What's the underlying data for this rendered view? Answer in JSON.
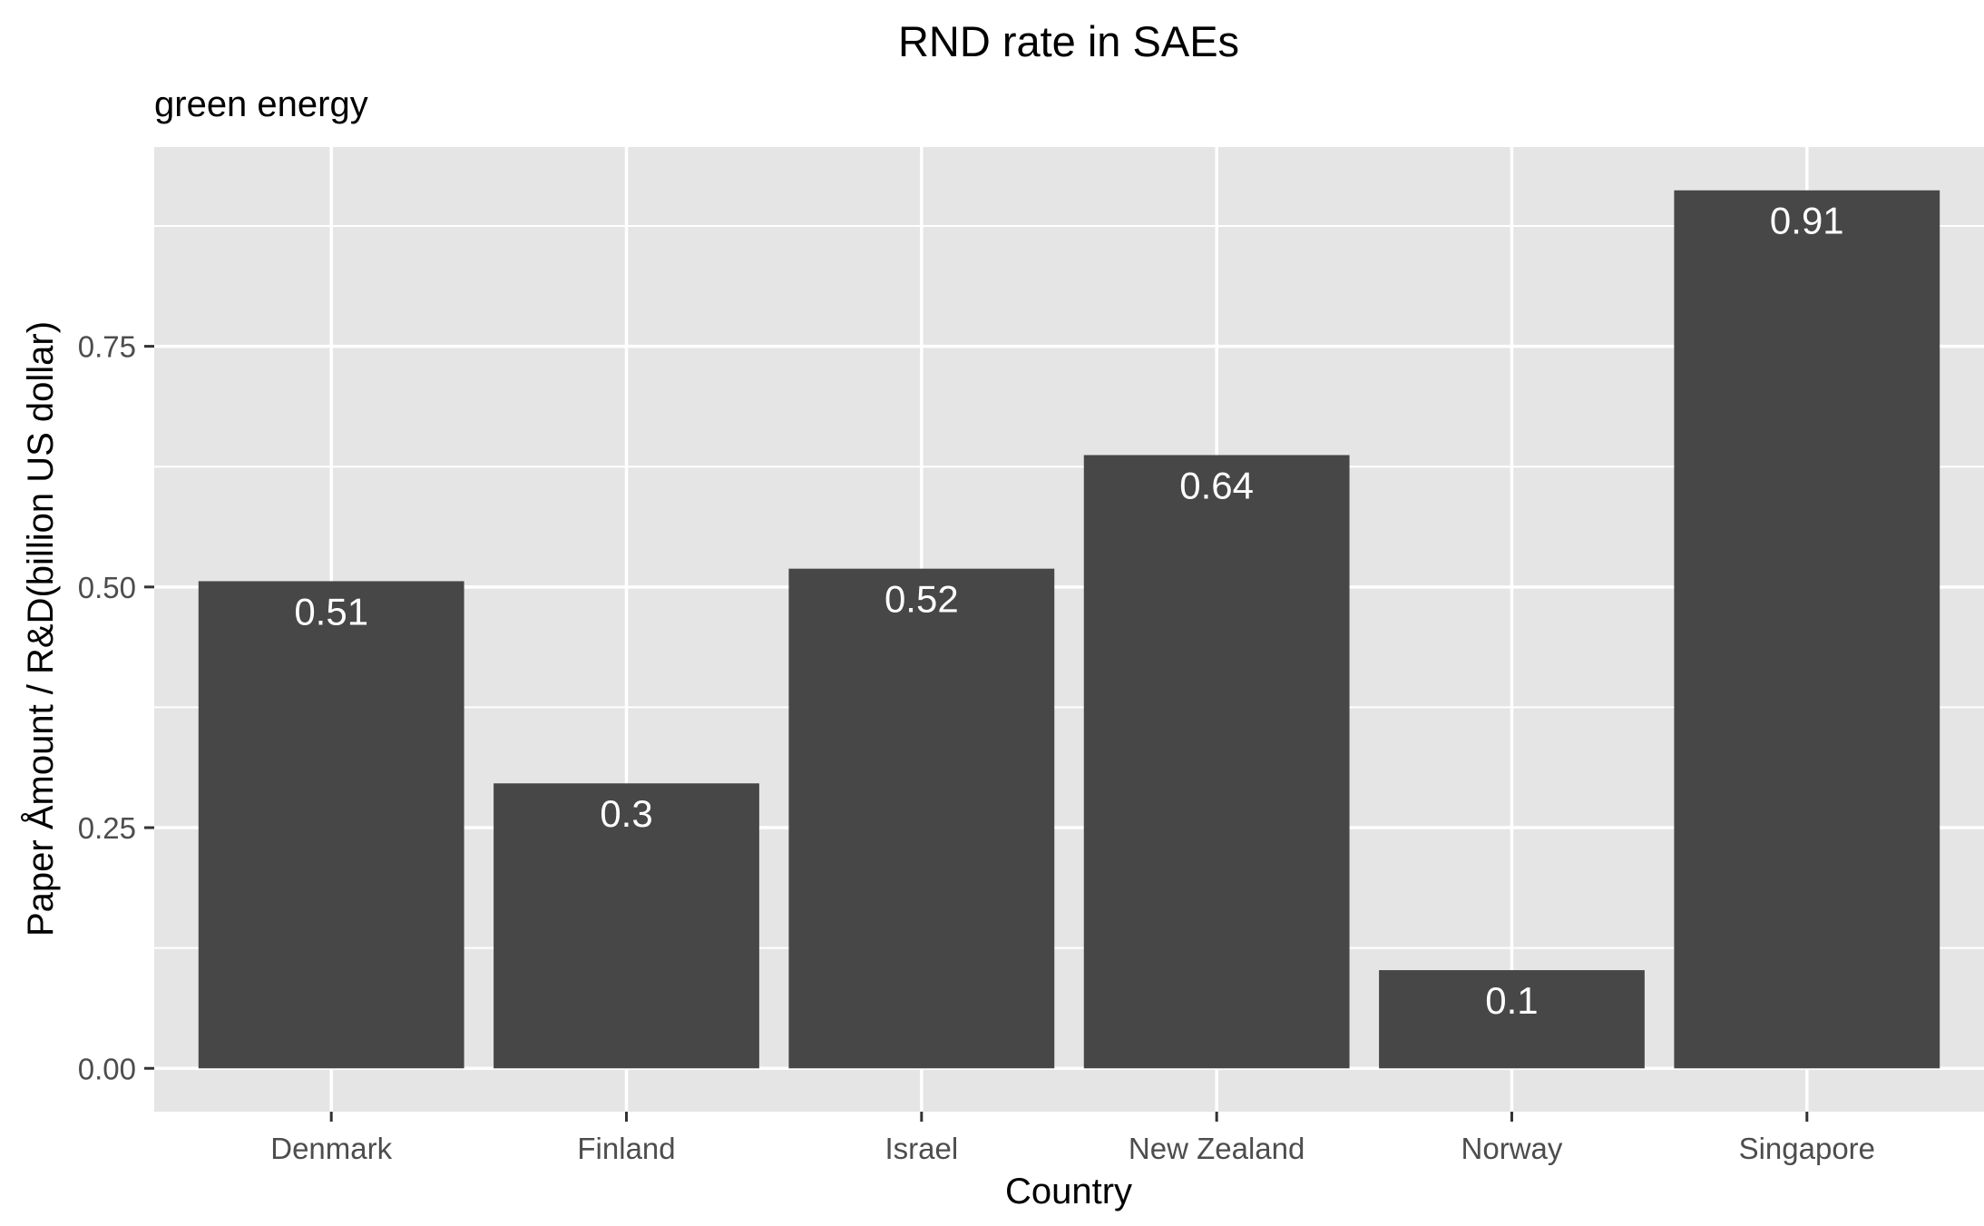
{
  "chart_data": {
    "type": "bar",
    "title": "RND rate in SAEs",
    "subtitle": "green energy",
    "xlabel": "Country",
    "ylabel": "Paper Åmount / R&D(billion US dollar)",
    "categories": [
      "Denmark",
      "Finland",
      "Israel",
      "New Zealand",
      "Norway",
      "Singapore"
    ],
    "values": [
      0.506,
      0.296,
      0.519,
      0.637,
      0.102,
      0.912
    ],
    "value_labels": [
      "0.51",
      "0.3",
      "0.52",
      "0.64",
      "0.1",
      "0.91"
    ],
    "y_ticks": [
      0,
      0.25,
      0.5,
      0.75
    ],
    "y_tick_labels": [
      "0.00",
      "0.25",
      "0.50",
      "0.75"
    ],
    "ylim": [
      -0.045,
      0.957
    ],
    "grid": true,
    "legend": "none",
    "colors": {
      "bar": "#474747",
      "panel": "#e5e5e5",
      "grid": "#ffffff",
      "bar_label": "#ffffff"
    }
  }
}
